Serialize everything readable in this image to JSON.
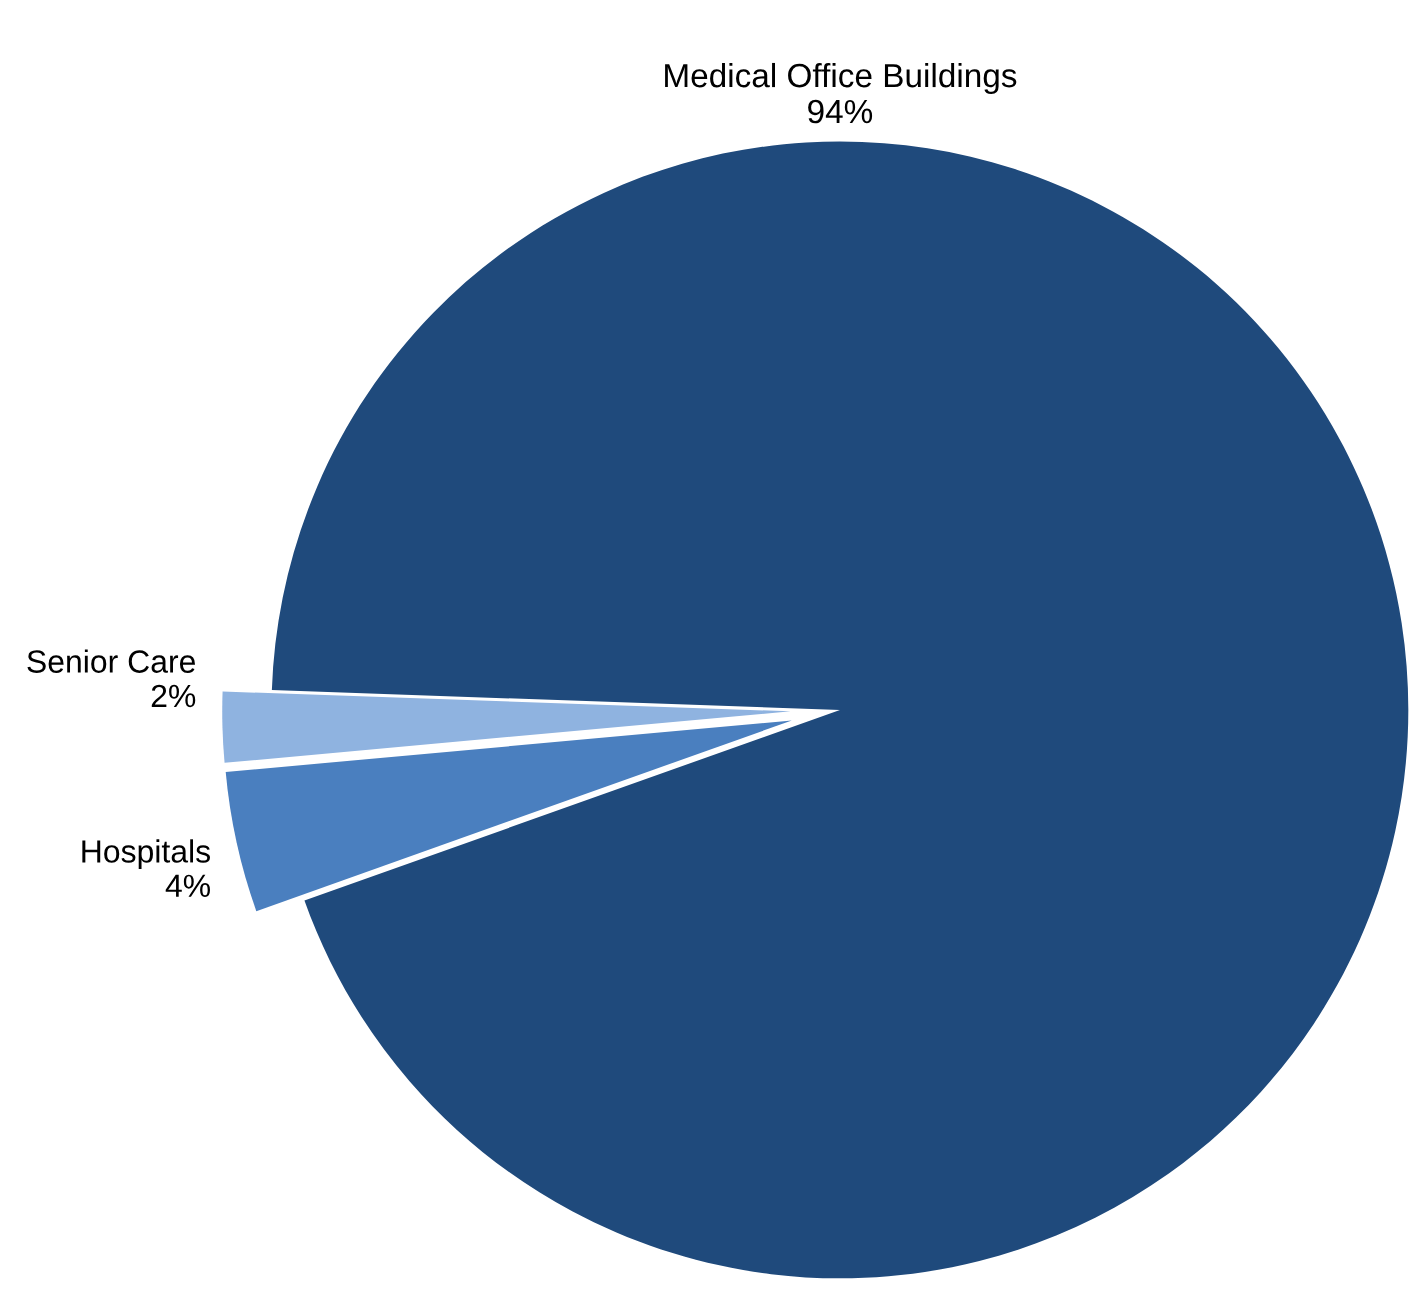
{
  "chart_data": {
    "type": "pie",
    "categories": [
      "Medical Office Buildings",
      "Senior Care",
      "Hospitals"
    ],
    "values": [
      94,
      2,
      4
    ],
    "colors": [
      "#1f4a7c",
      "#8fb3e0",
      "#4a7fbf"
    ],
    "value_labels": [
      "94%",
      "2%",
      "4%"
    ],
    "legend": false
  }
}
